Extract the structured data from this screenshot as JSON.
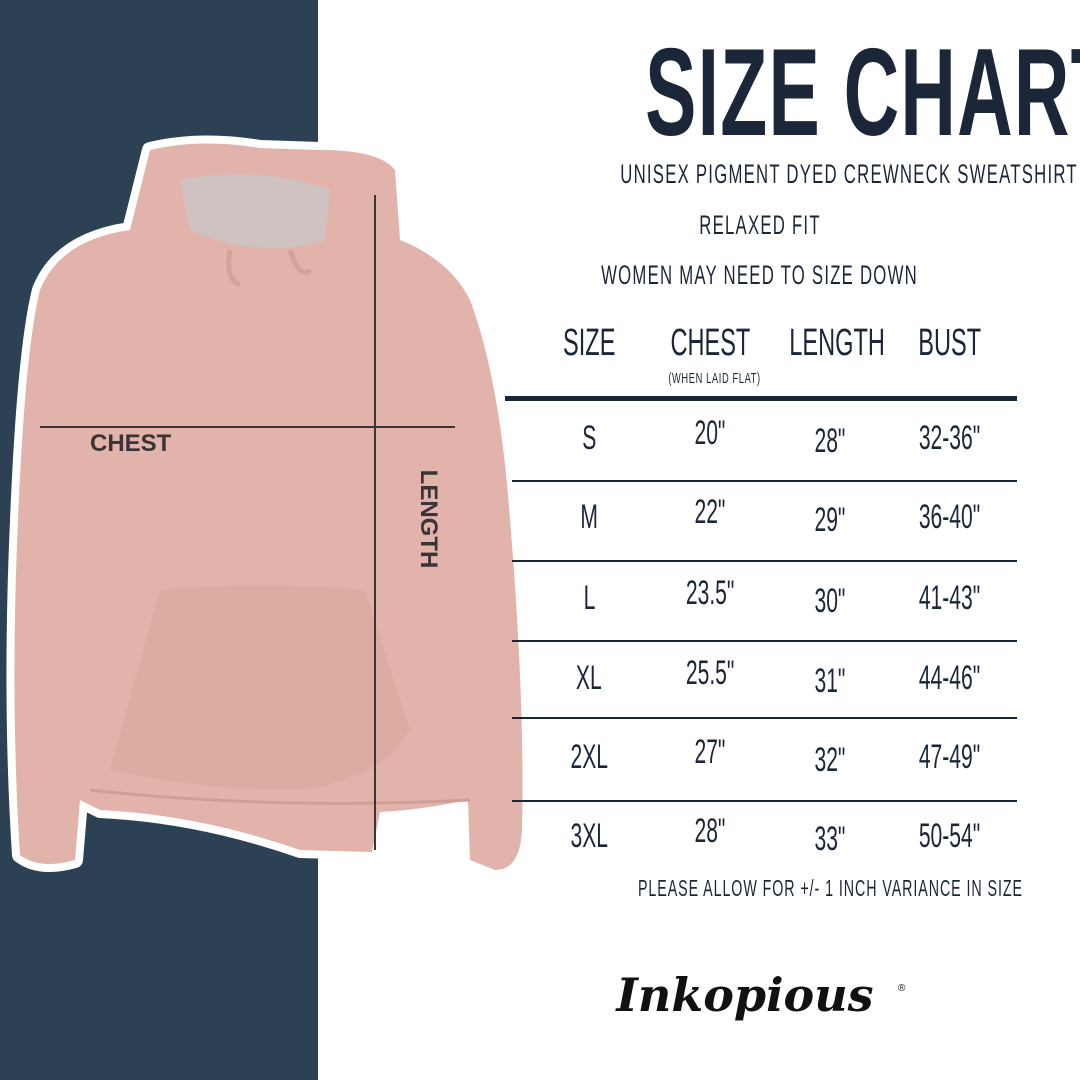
{
  "title": "SIZE CHART",
  "subtitle_lines": [
    "UNISEX PIGMENT DYED CREWNECK SWEATSHIRT",
    "RELAXED FIT",
    "WOMEN MAY NEED TO SIZE DOWN"
  ],
  "image_labels": {
    "chest": "CHEST",
    "length": "LENGTH"
  },
  "table": {
    "headers": [
      "SIZE",
      "CHEST",
      "LENGTH",
      "BUST"
    ],
    "chest_note": "(WHEN LAID FLAT)",
    "rows": [
      [
        "S",
        "20\"",
        "28\"",
        "32-36\""
      ],
      [
        "M",
        "22\"",
        "29\"",
        "36-40\""
      ],
      [
        "L",
        "23.5\"",
        "30\"",
        "41-43\""
      ],
      [
        "XL",
        "25.5\"",
        "31\"",
        "44-46\""
      ],
      [
        "2XL",
        "27\"",
        "32\"",
        "47-49\""
      ],
      [
        "3XL",
        "28\"",
        "33\"",
        "50-54\""
      ]
    ]
  },
  "footnote": "PLEASE ALLOW FOR +/- 1 INCH VARIANCE IN SIZE",
  "logo_text": "Inkopious",
  "colors": {
    "panel": "#2d4154",
    "text": "#1b2638",
    "hoodie": "#e4b4ad"
  }
}
